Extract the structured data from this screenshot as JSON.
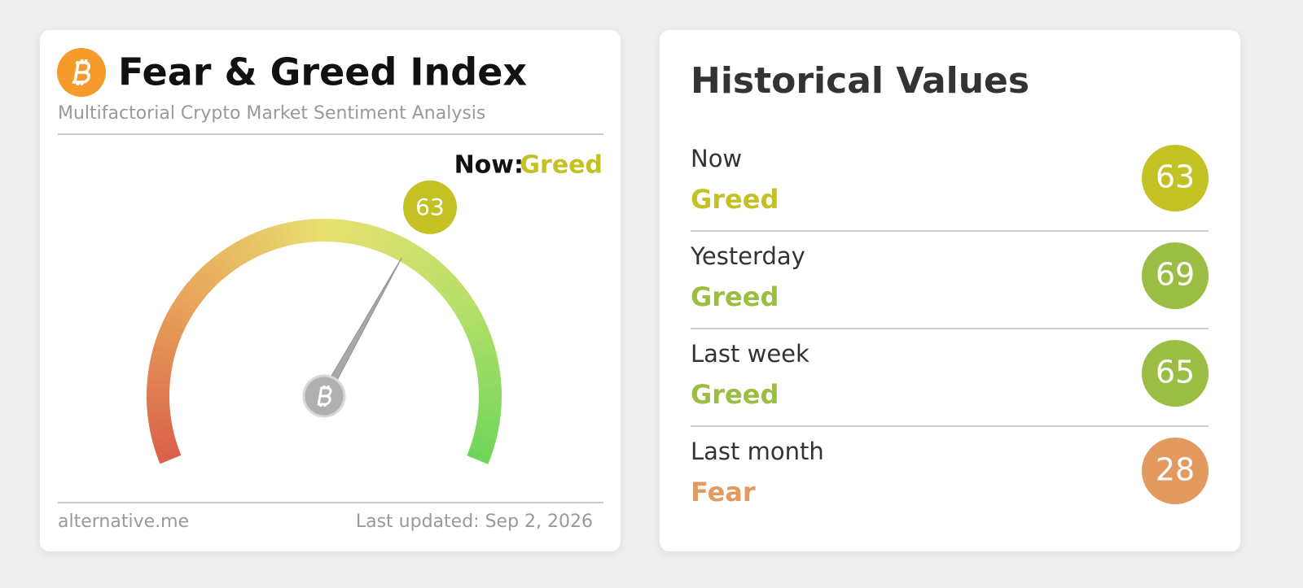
{
  "header": {
    "title": "Fear & Greed Index",
    "subtitle": "Multifactorial Crypto Market Sentiment Analysis"
  },
  "gauge": {
    "now_label": "Now:",
    "classification": "Greed",
    "value": 63,
    "range": [
      0,
      100
    ],
    "color": "#c4c125"
  },
  "footer": {
    "source": "alternative.me",
    "updated": "Last updated: Sep 2, 2026"
  },
  "history": {
    "title": "Historical Values",
    "rows": [
      {
        "label": "Now",
        "classification": "Greed",
        "value": 63,
        "color": "#c4c125"
      },
      {
        "label": "Yesterday",
        "classification": "Greed",
        "value": 69,
        "color": "#9bbd43"
      },
      {
        "label": "Last week",
        "classification": "Greed",
        "value": 65,
        "color": "#9bbd43"
      },
      {
        "label": "Last month",
        "classification": "Fear",
        "value": 28,
        "color": "#e39a5f"
      }
    ]
  }
}
